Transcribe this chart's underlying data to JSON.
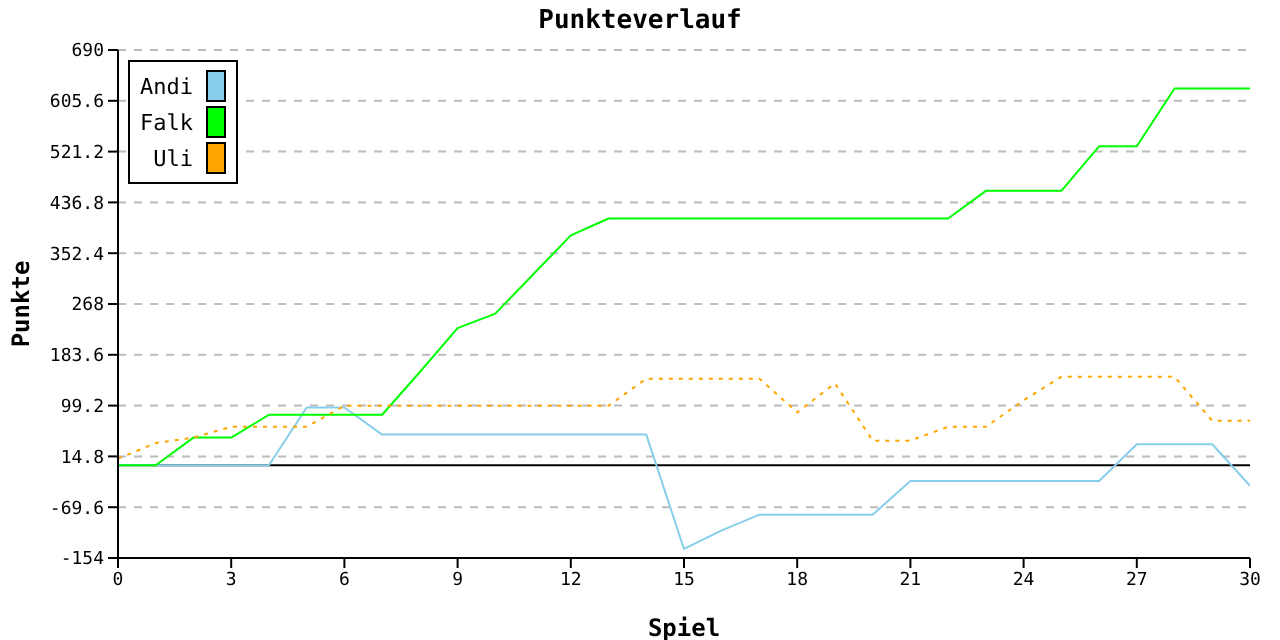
{
  "chart_data": {
    "type": "line",
    "title": "Punkteverlauf",
    "xlabel": "Spiel",
    "ylabel": "Punkte",
    "x": [
      0,
      1,
      2,
      3,
      4,
      5,
      6,
      7,
      8,
      9,
      10,
      11,
      12,
      13,
      14,
      15,
      16,
      17,
      18,
      19,
      20,
      21,
      22,
      23,
      24,
      25,
      26,
      27,
      28,
      29,
      30
    ],
    "series": [
      {
        "name": "Andi",
        "color": "#87ceeb",
        "line_style": "solid",
        "values": [
          0,
          0,
          0,
          0,
          0,
          96,
          96,
          51,
          51,
          51,
          51,
          51,
          51,
          51,
          51,
          -139,
          -108,
          -82,
          -82,
          -82,
          -82,
          -26,
          -26,
          -26,
          -26,
          -26,
          -26,
          35,
          35,
          35,
          -34
        ]
      },
      {
        "name": "Falk",
        "color": "#00ff00",
        "line_style": "solid",
        "values": [
          0,
          0,
          46,
          46,
          84,
          84,
          84,
          84,
          155,
          228,
          252,
          317,
          382,
          410,
          410,
          410,
          410,
          410,
          410,
          410,
          410,
          410,
          410,
          456,
          456,
          456,
          530,
          530,
          626,
          626,
          626
        ]
      },
      {
        "name": "Uli",
        "color": "#ffa500",
        "line_style": "dotted",
        "values": [
          11,
          37,
          46,
          64,
          64,
          64,
          99,
          99,
          99,
          99,
          99,
          99,
          99,
          99,
          144,
          144,
          144,
          144,
          88,
          136,
          41,
          41,
          64,
          64,
          108,
          147,
          147,
          147,
          147,
          74,
          74
        ]
      }
    ],
    "xlim": [
      0,
      30
    ],
    "xticks": [
      0,
      3,
      6,
      9,
      12,
      15,
      18,
      21,
      24,
      27,
      30
    ],
    "ylim": [
      -154,
      690
    ],
    "yticks": [
      -154,
      -69.6,
      14.8,
      99.2,
      183.6,
      268,
      352.4,
      436.8,
      521.2,
      605.6,
      690
    ],
    "ref_lines": [
      {
        "axis": "y",
        "value": 0,
        "color": "#000000"
      }
    ],
    "grid": "y",
    "legend": "top left",
    "marker": "none"
  }
}
